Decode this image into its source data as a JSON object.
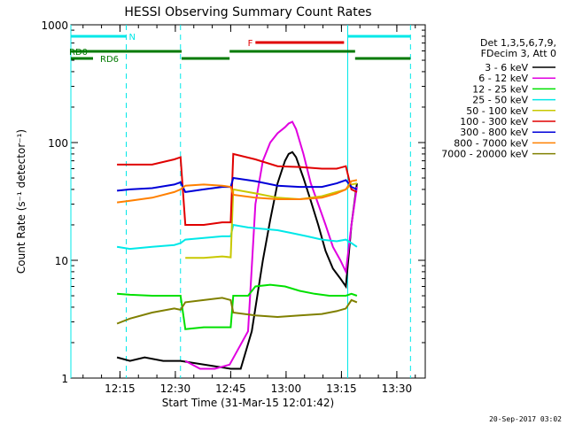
{
  "chart_data": {
    "type": "line",
    "title": "HESSI Observing Summary Count Rates",
    "xlabel": "Start Time (31-Mar-15 12:01:42)",
    "ylabel": "Count Rate (s⁻¹ detector⁻¹)",
    "yscale": "log",
    "ylim": [
      1,
      1000
    ],
    "xlim_minutes": [
      0,
      96
    ],
    "x_ticks": [
      {
        "min": 13.3,
        "label": "12:15"
      },
      {
        "min": 28.3,
        "label": "12:30"
      },
      {
        "min": 43.3,
        "label": "12:45"
      },
      {
        "min": 58.3,
        "label": "13:00"
      },
      {
        "min": 73.3,
        "label": "13:15"
      },
      {
        "min": 88.3,
        "label": "13:30"
      }
    ],
    "y_ticks": [
      {
        "value": 1,
        "label": "1"
      },
      {
        "value": 10,
        "label": "10"
      },
      {
        "value": 100,
        "label": "100"
      },
      {
        "value": 1000,
        "label": "1000"
      }
    ],
    "legend_header": [
      "Det 1,3,5,6,7,9,",
      "FDecim 3, Att 0"
    ],
    "legend_position": "right",
    "flags": [
      {
        "label": "N",
        "color": "#00e8e8",
        "segments": [
          [
            0,
            15
          ],
          [
            75,
            92
          ]
        ]
      },
      {
        "label": "F",
        "color": "#e00000",
        "segments": [
          [
            50,
            74
          ]
        ]
      },
      {
        "label": "RD0",
        "color": "#007a00",
        "segments": [
          [
            0,
            30
          ],
          [
            43,
            77
          ]
        ]
      },
      {
        "label": "RD6",
        "color": "#007a00",
        "segments": [
          [
            0,
            6
          ],
          [
            30,
            43
          ],
          [
            77,
            92
          ]
        ]
      }
    ],
    "night_markers_minutes": [
      0,
      15,
      29.7,
      75,
      92
    ],
    "series": [
      {
        "name": "3 - 6 keV",
        "color": "#000000",
        "points": [
          [
            12.5,
            1.5
          ],
          [
            16,
            1.4
          ],
          [
            20,
            1.5
          ],
          [
            25,
            1.4
          ],
          [
            29.7,
            1.4
          ],
          [
            43.3,
            1.2
          ],
          [
            46,
            1.2
          ],
          [
            49,
            2.5
          ],
          [
            52,
            10
          ],
          [
            54,
            22
          ],
          [
            56,
            45
          ],
          [
            58,
            70
          ],
          [
            59,
            80
          ],
          [
            60,
            83
          ],
          [
            61,
            75
          ],
          [
            63,
            50
          ],
          [
            65,
            32
          ],
          [
            67,
            20
          ],
          [
            69,
            12
          ],
          [
            71,
            8.5
          ],
          [
            73,
            7
          ],
          [
            74.5,
            6
          ],
          [
            76,
            20
          ],
          [
            77.5,
            45
          ]
        ]
      },
      {
        "name": "6 - 12 keV",
        "color": "#e000e0",
        "points": [
          [
            31,
            1.4
          ],
          [
            35,
            1.2
          ],
          [
            39,
            1.2
          ],
          [
            43,
            1.3
          ],
          [
            48,
            2.5
          ],
          [
            50,
            30
          ],
          [
            52,
            70
          ],
          [
            54,
            100
          ],
          [
            56,
            120
          ],
          [
            58,
            135
          ],
          [
            59,
            145
          ],
          [
            60,
            150
          ],
          [
            61,
            130
          ],
          [
            63,
            80
          ],
          [
            65,
            45
          ],
          [
            67,
            30
          ],
          [
            69,
            20
          ],
          [
            71,
            13
          ],
          [
            73,
            10
          ],
          [
            74.5,
            8
          ],
          [
            76,
            20
          ],
          [
            77.5,
            42
          ]
        ]
      },
      {
        "name": "12 - 25 keV",
        "color": "#00e000",
        "points": [
          [
            12.5,
            5.2
          ],
          [
            16,
            5.1
          ],
          [
            22,
            5.0
          ],
          [
            29.7,
            5.0
          ],
          [
            31,
            2.6
          ],
          [
            36,
            2.7
          ],
          [
            41,
            2.7
          ],
          [
            43.3,
            2.7
          ],
          [
            44,
            5.0
          ],
          [
            48,
            5.0
          ],
          [
            50,
            6.0
          ],
          [
            54,
            6.2
          ],
          [
            58,
            6.0
          ],
          [
            62,
            5.5
          ],
          [
            66,
            5.2
          ],
          [
            70,
            5.0
          ],
          [
            74.5,
            5.0
          ],
          [
            76,
            5.2
          ],
          [
            77.5,
            5.0
          ]
        ]
      },
      {
        "name": "25 - 50 keV",
        "color": "#00e8e8",
        "points": [
          [
            12.5,
            13
          ],
          [
            16,
            12.5
          ],
          [
            22,
            13
          ],
          [
            28,
            13.5
          ],
          [
            29.7,
            14
          ],
          [
            31,
            15
          ],
          [
            36,
            15.5
          ],
          [
            41,
            16
          ],
          [
            43.3,
            16
          ],
          [
            44,
            20
          ],
          [
            48,
            19
          ],
          [
            52,
            18.5
          ],
          [
            56,
            18
          ],
          [
            60,
            17
          ],
          [
            64,
            16
          ],
          [
            68,
            15
          ],
          [
            72,
            14.5
          ],
          [
            74.5,
            15
          ],
          [
            76,
            14
          ],
          [
            77.5,
            13
          ]
        ]
      },
      {
        "name": "50 - 100 keV",
        "color": "#c8c800",
        "points": [
          [
            31,
            10.5
          ],
          [
            36,
            10.5
          ],
          [
            41,
            10.8
          ],
          [
            43.3,
            10.6
          ],
          [
            44,
            40
          ],
          [
            50,
            37
          ],
          [
            56,
            34
          ],
          [
            62,
            33
          ],
          [
            68,
            35
          ],
          [
            72,
            38
          ],
          [
            74.5,
            40
          ],
          [
            76,
            44
          ],
          [
            77.5,
            45
          ]
        ]
      },
      {
        "name": "100 - 300 keV",
        "color": "#e00000",
        "points": [
          [
            12.5,
            65
          ],
          [
            16,
            65
          ],
          [
            22,
            65
          ],
          [
            28,
            72
          ],
          [
            29.7,
            75
          ],
          [
            31,
            20
          ],
          [
            36,
            20
          ],
          [
            41,
            21
          ],
          [
            43.3,
            21
          ],
          [
            44,
            80
          ],
          [
            50,
            72
          ],
          [
            56,
            63
          ],
          [
            62,
            62
          ],
          [
            68,
            60
          ],
          [
            72,
            60
          ],
          [
            74.5,
            63
          ],
          [
            76,
            40
          ],
          [
            77.5,
            38
          ]
        ]
      },
      {
        "name": "300 - 800 keV",
        "color": "#0000d8",
        "points": [
          [
            12.5,
            39
          ],
          [
            16,
            40
          ],
          [
            22,
            41
          ],
          [
            28,
            44
          ],
          [
            29.7,
            46
          ],
          [
            31,
            38
          ],
          [
            36,
            40
          ],
          [
            41,
            42
          ],
          [
            43.3,
            42
          ],
          [
            44,
            50
          ],
          [
            50,
            47
          ],
          [
            56,
            43
          ],
          [
            62,
            42
          ],
          [
            68,
            42
          ],
          [
            72,
            45
          ],
          [
            74.5,
            48
          ],
          [
            76,
            42
          ],
          [
            77.5,
            40
          ]
        ]
      },
      {
        "name": "800 - 7000 keV",
        "color": "#ff8000",
        "points": [
          [
            12.5,
            31
          ],
          [
            16,
            32
          ],
          [
            22,
            34
          ],
          [
            28,
            38
          ],
          [
            29.7,
            40
          ],
          [
            31,
            43
          ],
          [
            36,
            44
          ],
          [
            41,
            43
          ],
          [
            43.3,
            42
          ],
          [
            44,
            36
          ],
          [
            50,
            34
          ],
          [
            56,
            33
          ],
          [
            62,
            33
          ],
          [
            68,
            34
          ],
          [
            72,
            37
          ],
          [
            74.5,
            40
          ],
          [
            76,
            47
          ],
          [
            77.5,
            48
          ]
        ]
      },
      {
        "name": "7000 - 20000 keV",
        "color": "#808000",
        "points": [
          [
            12.5,
            2.9
          ],
          [
            16,
            3.2
          ],
          [
            22,
            3.6
          ],
          [
            28,
            3.9
          ],
          [
            29.7,
            3.8
          ],
          [
            31,
            4.4
          ],
          [
            36,
            4.6
          ],
          [
            41,
            4.8
          ],
          [
            43.3,
            4.6
          ],
          [
            44,
            3.6
          ],
          [
            50,
            3.4
          ],
          [
            56,
            3.3
          ],
          [
            62,
            3.4
          ],
          [
            68,
            3.5
          ],
          [
            72,
            3.7
          ],
          [
            74.5,
            3.9
          ],
          [
            76,
            4.6
          ],
          [
            77.5,
            4.4
          ]
        ]
      }
    ]
  },
  "footer_date": "20-Sep-2017 03:02"
}
